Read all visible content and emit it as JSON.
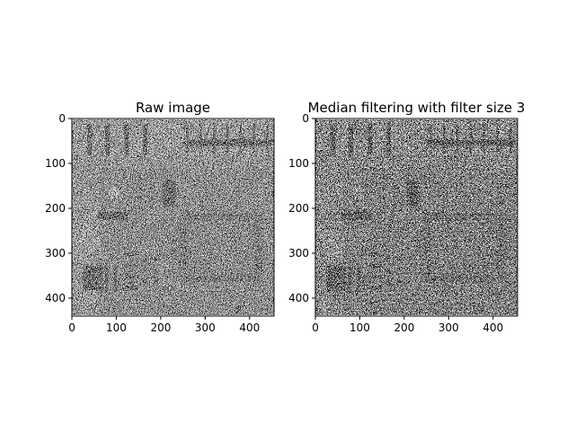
{
  "chart_data": [
    {
      "type": "heatmap",
      "title": "Raw image",
      "image": "grayscale circuit-board x-ray with salt-and-pepper noise",
      "image_shape": [
        440,
        455
      ],
      "colormap": "gray",
      "xlim": [
        0,
        455
      ],
      "ylim": [
        440,
        0
      ],
      "xticks": [
        0,
        100,
        200,
        300,
        400
      ],
      "yticks": [
        0,
        100,
        200,
        300,
        400
      ],
      "grid": false
    },
    {
      "type": "heatmap",
      "title": "Median filtering with filter size 3",
      "image": "same circuit-board x-ray after 3x3 median filtering",
      "image_shape": [
        440,
        455
      ],
      "colormap": "gray",
      "xlim": [
        0,
        455
      ],
      "ylim": [
        440,
        0
      ],
      "xticks": [
        0,
        100,
        200,
        300,
        400
      ],
      "yticks": [
        0,
        100,
        200,
        300,
        400
      ],
      "grid": false
    }
  ]
}
